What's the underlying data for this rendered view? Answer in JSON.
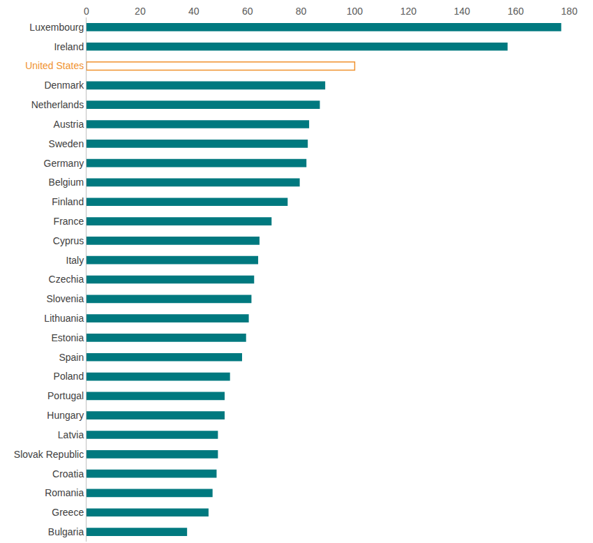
{
  "chart_data": {
    "type": "bar",
    "orientation": "horizontal",
    "categories": [
      "Luxembourg",
      "Ireland",
      "United States",
      "Denmark",
      "Netherlands",
      "Austria",
      "Sweden",
      "Germany",
      "Belgium",
      "Finland",
      "France",
      "Cyprus",
      "Italy",
      "Czechia",
      "Slovenia",
      "Lithuania",
      "Estonia",
      "Spain",
      "Poland",
      "Portugal",
      "Hungary",
      "Latvia",
      "Slovak Republic",
      "Croatia",
      "Romania",
      "Greece",
      "Bulgaria"
    ],
    "values": [
      177,
      157,
      100,
      89,
      87,
      83,
      82.5,
      82,
      79.5,
      75,
      69,
      64.5,
      64,
      62.5,
      61.5,
      60.5,
      59.5,
      58,
      53.5,
      51.5,
      51.5,
      49,
      49,
      48.5,
      47,
      45.5,
      37.5
    ],
    "colors": [
      "#00797f",
      "#00797f",
      "#f0922f",
      "#00797f",
      "#00797f",
      "#00797f",
      "#00797f",
      "#00797f",
      "#00797f",
      "#00797f",
      "#00797f",
      "#00797f",
      "#00797f",
      "#00797f",
      "#00797f",
      "#00797f",
      "#00797f",
      "#00797f",
      "#00797f",
      "#00797f",
      "#00797f",
      "#00797f",
      "#00797f",
      "#00797f",
      "#00797f",
      "#00797f",
      "#00797f"
    ],
    "xlim": [
      0,
      180
    ],
    "xticks": [
      0,
      20,
      40,
      60,
      80,
      100,
      120,
      140,
      160,
      180
    ],
    "grid": false
  }
}
